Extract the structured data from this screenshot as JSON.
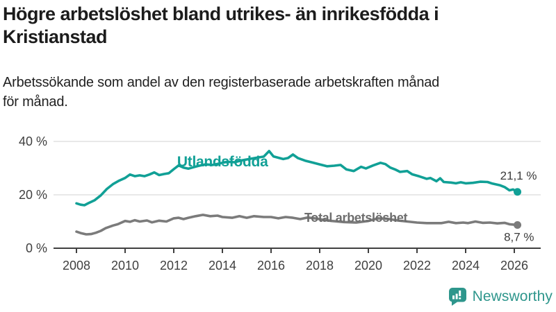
{
  "header": {
    "title_lines": [
      "Högre arbetslöshet bland utrikes- än inrikesfödda i",
      "Kristianstad"
    ],
    "subtitle_lines": [
      "Arbetssökande som andel av den registerbaserade arbetskraften månad",
      "för månad."
    ]
  },
  "footer": {
    "brand": "Newsworthy",
    "logo_icon": "bar-chart-speech-bubble-icon",
    "brand_color": "#2e968c"
  },
  "colors": {
    "background": "#ffffff",
    "title_text": "#1c1c1c",
    "axis_text": "#3f3f3f",
    "axis_line": "#3f3f3f",
    "gridline": "#d9d9d9",
    "annotation_text": "#3a3a3a",
    "series_foreign_born": "#11a096",
    "series_total": "#7b7b7b",
    "series_total_label": "#6d6d6d"
  },
  "chart_data": {
    "type": "line",
    "title": "Högre arbetslöshet bland utrikes- än inrikesfödda i Kristianstad",
    "subtitle": "Arbetssökande som andel av den registerbaserade arbetskraften månad för månad.",
    "grid": "horizontal-only",
    "legend_position": "inline-labels-on-lines",
    "x_axis": {
      "unit": "year",
      "ticks": [
        2008,
        2010,
        2012,
        2014,
        2016,
        2018,
        2020,
        2022,
        2024,
        2026
      ],
      "range_years": [
        2007.0,
        2027.1
      ]
    },
    "y_axis": {
      "unit": "percent",
      "ticks": [
        0,
        20,
        40
      ],
      "tick_labels": [
        "0 %",
        "20 %",
        "40 %"
      ],
      "ylim": [
        0,
        45
      ]
    },
    "series": [
      {
        "name": "Utlandsfödda",
        "color": "#11a096",
        "label_color": "#11a096",
        "label_font_size": 21,
        "label_pos": {
          "year": 2012.14,
          "pct": 30.6
        },
        "end_label": "21,1 %",
        "end_value": 21.1,
        "points": [
          [
            2008.0,
            16.8
          ],
          [
            2008.17,
            16.3
          ],
          [
            2008.33,
            16.1
          ],
          [
            2008.5,
            16.9
          ],
          [
            2008.75,
            18.0
          ],
          [
            2009.0,
            19.8
          ],
          [
            2009.25,
            22.2
          ],
          [
            2009.5,
            24.0
          ],
          [
            2009.75,
            25.3
          ],
          [
            2010.0,
            26.3
          ],
          [
            2010.2,
            27.6
          ],
          [
            2010.4,
            27.0
          ],
          [
            2010.6,
            27.3
          ],
          [
            2010.8,
            27.0
          ],
          [
            2011.0,
            27.6
          ],
          [
            2011.2,
            28.4
          ],
          [
            2011.4,
            27.4
          ],
          [
            2011.6,
            27.8
          ],
          [
            2011.8,
            28.1
          ],
          [
            2012.0,
            29.6
          ],
          [
            2012.2,
            31.0
          ],
          [
            2012.4,
            30.2
          ],
          [
            2012.6,
            29.8
          ],
          [
            2012.8,
            30.3
          ],
          [
            2013.0,
            30.8
          ],
          [
            2013.3,
            31.4
          ],
          [
            2013.6,
            31.2
          ],
          [
            2013.9,
            31.8
          ],
          [
            2014.2,
            32.4
          ],
          [
            2014.5,
            32.2
          ],
          [
            2014.8,
            32.9
          ],
          [
            2015.1,
            33.4
          ],
          [
            2015.4,
            33.9
          ],
          [
            2015.7,
            34.3
          ],
          [
            2015.92,
            36.4
          ],
          [
            2016.1,
            34.4
          ],
          [
            2016.3,
            33.9
          ],
          [
            2016.5,
            33.4
          ],
          [
            2016.7,
            33.8
          ],
          [
            2016.9,
            35.1
          ],
          [
            2017.1,
            33.8
          ],
          [
            2017.4,
            32.8
          ],
          [
            2017.7,
            32.1
          ],
          [
            2018.0,
            31.4
          ],
          [
            2018.3,
            30.7
          ],
          [
            2018.6,
            30.9
          ],
          [
            2018.86,
            31.2
          ],
          [
            2019.1,
            29.5
          ],
          [
            2019.4,
            28.9
          ],
          [
            2019.7,
            30.5
          ],
          [
            2019.9,
            29.9
          ],
          [
            2020.2,
            31.0
          ],
          [
            2020.5,
            32.0
          ],
          [
            2020.7,
            31.5
          ],
          [
            2020.9,
            30.2
          ],
          [
            2021.1,
            29.5
          ],
          [
            2021.3,
            28.6
          ],
          [
            2021.6,
            28.9
          ],
          [
            2021.8,
            27.7
          ],
          [
            2022.1,
            26.9
          ],
          [
            2022.4,
            26.0
          ],
          [
            2022.55,
            26.3
          ],
          [
            2022.8,
            25.1
          ],
          [
            2022.95,
            26.2
          ],
          [
            2023.1,
            24.8
          ],
          [
            2023.4,
            24.6
          ],
          [
            2023.6,
            24.3
          ],
          [
            2023.8,
            24.7
          ],
          [
            2024.0,
            24.3
          ],
          [
            2024.3,
            24.5
          ],
          [
            2024.6,
            24.9
          ],
          [
            2024.9,
            24.8
          ],
          [
            2025.1,
            24.2
          ],
          [
            2025.4,
            23.6
          ],
          [
            2025.6,
            22.9
          ],
          [
            2025.8,
            21.7
          ],
          [
            2025.95,
            22.0
          ],
          [
            2026.13,
            21.1
          ]
        ]
      },
      {
        "name": "Total arbetslöshet",
        "color": "#7b7b7b",
        "label_color": "#6d6d6d",
        "label_font_size": 18,
        "label_pos": {
          "year": 2017.37,
          "pct": 9.9
        },
        "end_label": "8,7 %",
        "end_value": 8.7,
        "points": [
          [
            2008.0,
            6.2
          ],
          [
            2008.2,
            5.6
          ],
          [
            2008.4,
            5.2
          ],
          [
            2008.6,
            5.3
          ],
          [
            2008.8,
            5.8
          ],
          [
            2009.0,
            6.5
          ],
          [
            2009.2,
            7.5
          ],
          [
            2009.5,
            8.5
          ],
          [
            2009.7,
            9.0
          ],
          [
            2010.0,
            10.2
          ],
          [
            2010.2,
            9.9
          ],
          [
            2010.4,
            10.5
          ],
          [
            2010.6,
            10.0
          ],
          [
            2010.9,
            10.4
          ],
          [
            2011.1,
            9.7
          ],
          [
            2011.4,
            10.3
          ],
          [
            2011.7,
            10.0
          ],
          [
            2012.0,
            11.2
          ],
          [
            2012.2,
            11.4
          ],
          [
            2012.4,
            10.9
          ],
          [
            2012.6,
            11.4
          ],
          [
            2012.9,
            12.0
          ],
          [
            2013.2,
            12.5
          ],
          [
            2013.5,
            12.0
          ],
          [
            2013.8,
            12.2
          ],
          [
            2014.0,
            11.7
          ],
          [
            2014.4,
            11.4
          ],
          [
            2014.7,
            12.0
          ],
          [
            2015.0,
            11.4
          ],
          [
            2015.3,
            12.0
          ],
          [
            2015.7,
            11.7
          ],
          [
            2016.0,
            11.7
          ],
          [
            2016.3,
            11.2
          ],
          [
            2016.6,
            11.7
          ],
          [
            2016.9,
            11.4
          ],
          [
            2017.2,
            10.9
          ],
          [
            2017.5,
            11.5
          ],
          [
            2017.8,
            11.2
          ],
          [
            2018.1,
            10.7
          ],
          [
            2018.5,
            10.2
          ],
          [
            2019.0,
            9.8
          ],
          [
            2019.5,
            9.6
          ],
          [
            2020.0,
            10.2
          ],
          [
            2020.4,
            11.2
          ],
          [
            2020.8,
            11.0
          ],
          [
            2021.2,
            10.4
          ],
          [
            2021.6,
            10.0
          ],
          [
            2022.0,
            9.6
          ],
          [
            2022.4,
            9.4
          ],
          [
            2022.8,
            9.4
          ],
          [
            2023.0,
            9.4
          ],
          [
            2023.3,
            9.9
          ],
          [
            2023.6,
            9.4
          ],
          [
            2023.9,
            9.6
          ],
          [
            2024.1,
            9.4
          ],
          [
            2024.4,
            10.0
          ],
          [
            2024.7,
            9.5
          ],
          [
            2025.0,
            9.6
          ],
          [
            2025.3,
            9.3
          ],
          [
            2025.6,
            9.5
          ],
          [
            2025.8,
            9.0
          ],
          [
            2026.13,
            8.7
          ]
        ]
      }
    ]
  }
}
